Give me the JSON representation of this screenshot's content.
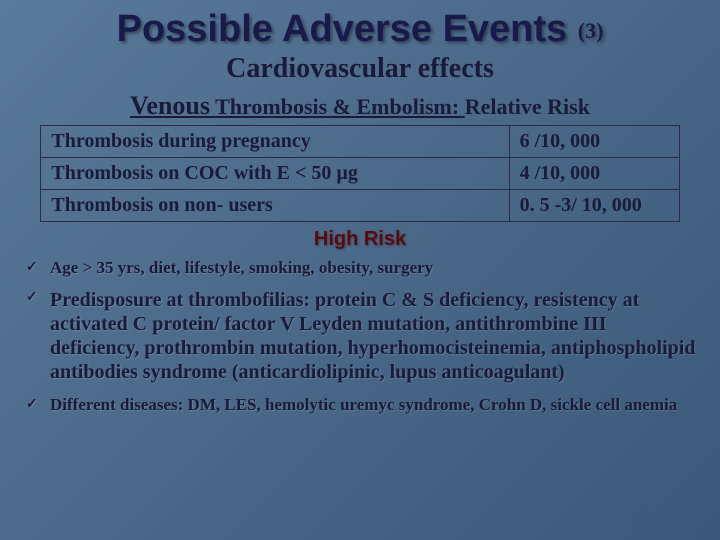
{
  "title_main": "Possible Adverse Events",
  "title_num": "(3)",
  "subtitle": "Cardiovascular effects",
  "section": {
    "venous_label": "Venous",
    "rest": "Thrombosis & Embolism:",
    "tail": "Relative Risk"
  },
  "table": {
    "rows": [
      {
        "label": "Thrombosis during pregnancy",
        "value": " 6 /10, 000"
      },
      {
        "label": "Thrombosis on COC with  E < 50 µg",
        "value": "4 /10, 000"
      },
      {
        "label": "Thrombosis on non- users",
        "value": "0. 5 -3/ 10, 000"
      }
    ]
  },
  "high_risk_label": "High Risk",
  "bullets": [
    "Age > 35 yrs,   diet,  lifestyle,  smoking, obesity,  surgery",
    "Predisposure at thrombofilias: protein C  & S deficiency, resistency at activated C protein/ factor V Leyden mutation, antithrombine III deficiency, prothrombin mutation, hyperhomocisteinemia,  antiphospholipid antibodies syndrome (anticardiolipinic, lupus anticoagulant)",
    "Different diseases: DM, LES, hemolytic uremyc syndrome, Crohn D, sickle cell anemia"
  ],
  "style": {
    "bg_gradient": [
      "#5a7a9a",
      "#4a6888",
      "#3a5878"
    ],
    "title_color": "#1a1a4a",
    "text_color": "#1a1a3a",
    "high_risk_color": "#5a0a0a",
    "border_color": "#2a2a4a",
    "title_fontsize": 38,
    "subtitle_fontsize": 28,
    "table_fontsize": 20
  }
}
